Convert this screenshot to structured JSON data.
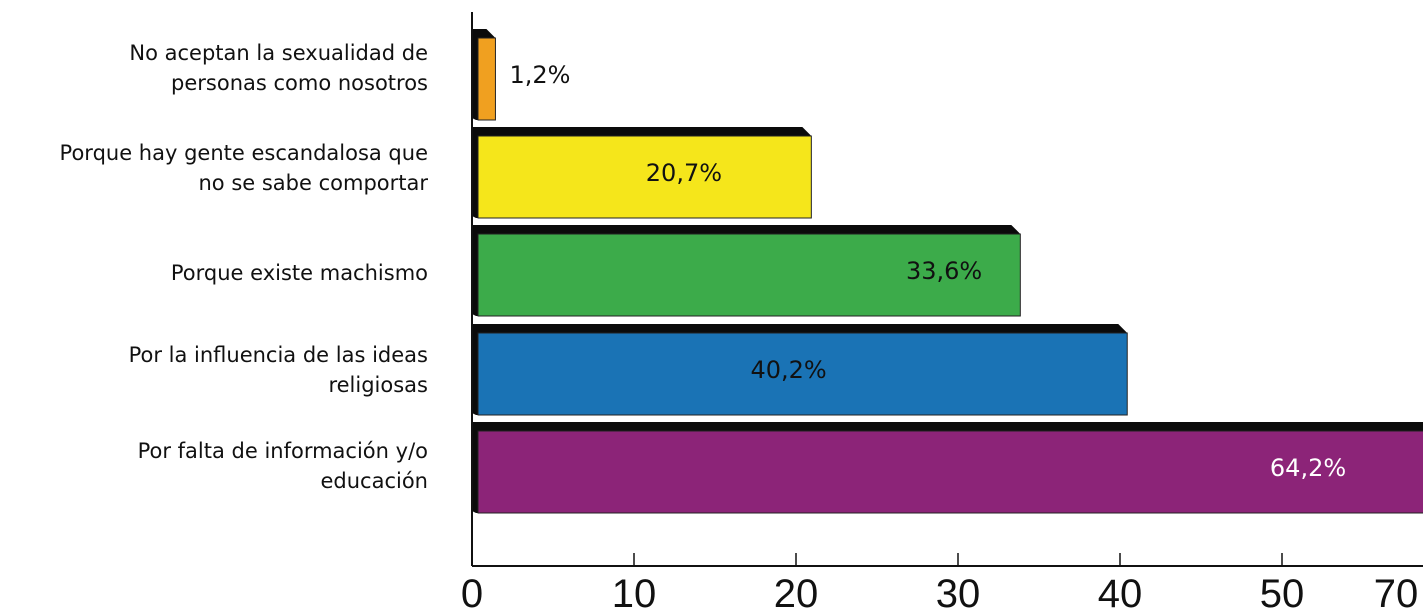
{
  "chart_data": {
    "type": "bar",
    "orientation": "horizontal",
    "categories": [
      [
        "No aceptan la sexualidad  de",
        "personas como nosotros"
      ],
      [
        "Porque hay gente escandalosa  que",
        "no se sabe comportar"
      ],
      [
        "Porque existe machismo"
      ],
      [
        "Por la influencia de las ideas",
        "religiosas"
      ],
      [
        "Por falta de información y/o",
        "educación"
      ]
    ],
    "values": [
      1.2,
      20.7,
      33.6,
      40.2,
      64.2
    ],
    "data_labels": [
      "1,2%",
      "20,7%",
      "33,6%",
      "40,2%",
      "64,2%"
    ],
    "colors": [
      "#f0a020",
      "#f5e61b",
      "#3cab4a",
      "#1a73b5",
      "#8c2478"
    ],
    "label_colors": [
      "#111111",
      "#111111",
      "#111111",
      "#111111",
      "#ffffff"
    ],
    "x_ticks": [
      "0",
      "10",
      "20",
      "30",
      "40",
      "50",
      "70"
    ],
    "xlim": [
      0,
      70
    ],
    "xlabel": "",
    "ylabel": "",
    "title": "",
    "grid": false,
    "legend": "none"
  }
}
